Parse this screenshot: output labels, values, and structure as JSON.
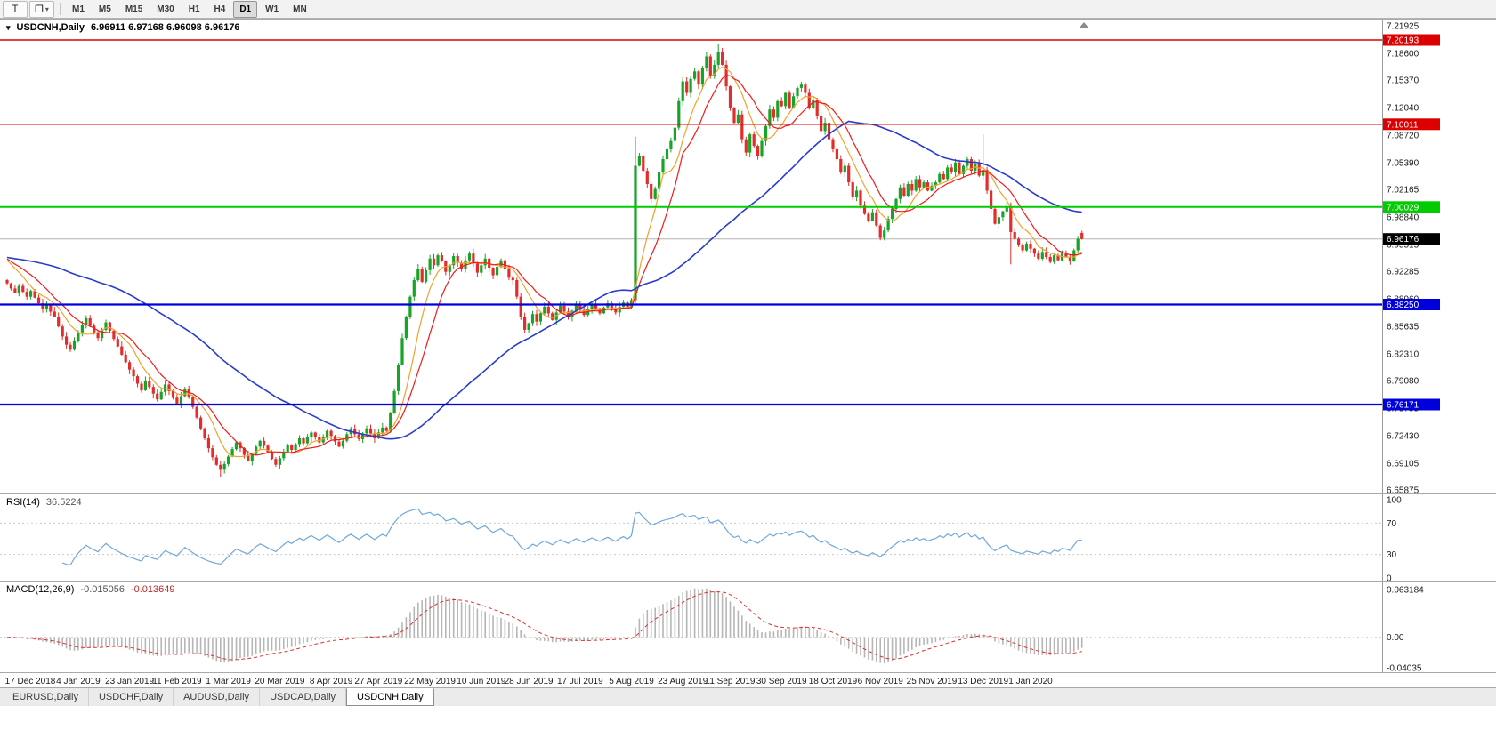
{
  "toolbar": {
    "tools": [
      {
        "name": "chart-template-button",
        "glyph": "T",
        "has_dropdown": false
      },
      {
        "name": "window-layout-button",
        "glyph": "❐",
        "has_dropdown": true
      }
    ],
    "timeframes": [
      "M1",
      "M5",
      "M15",
      "M30",
      "H1",
      "H4",
      "D1",
      "W1",
      "MN"
    ],
    "active_timeframe": "D1"
  },
  "chart": {
    "symbol_title": "USDCNH,Daily",
    "ohlc_text": "6.96911 6.97168 6.96098 6.96176",
    "scale": {
      "top": 7.2266,
      "bottom": 6.6544
    },
    "price_axis": [
      "7.21925",
      "7.18600",
      "7.15370",
      "7.12040",
      "7.08720",
      "7.05390",
      "7.02165",
      "6.98840",
      "6.95515",
      "6.92285",
      "6.88960",
      "6.85635",
      "6.82310",
      "6.79080",
      "6.75755",
      "6.72430",
      "6.69105",
      "6.65875"
    ],
    "hlines": [
      {
        "label": "7.20193",
        "price": 7.20193,
        "color": "#dd0000",
        "width": 1.4
      },
      {
        "label": "7.10011",
        "price": 7.10011,
        "color": "#dd0000",
        "width": 1.4
      },
      {
        "label": "7.00029",
        "price": 7.00029,
        "color": "#00cc00",
        "width": 2
      },
      {
        "label": "6.88250",
        "price": 6.8825,
        "color": "#0000dd",
        "width": 2.2
      },
      {
        "label": "6.76171",
        "price": 6.76171,
        "color": "#0000dd",
        "width": 2.2
      }
    ],
    "current_price": {
      "label": "6.96176",
      "value": 6.96176,
      "badge_bg": "#000000",
      "badge_fg": "#ffffff",
      "line_color": "#b4b4b4"
    },
    "candle_colors": {
      "bull": "#17a427",
      "bear": "#e32c2c"
    },
    "moving_averages": [
      {
        "period": 8,
        "color": "#efa32a",
        "width": 1.2
      },
      {
        "period": 13,
        "color": "#f01b1b",
        "width": 1.2
      },
      {
        "period": 55,
        "color": "#2b3cc8",
        "width": 1.6
      }
    ],
    "prehistory_price": 6.94,
    "candles": {
      "closes": [
        6.908,
        6.902,
        6.897,
        6.905,
        6.898,
        6.892,
        6.899,
        6.891,
        6.884,
        6.877,
        6.882,
        6.874,
        6.868,
        6.856,
        6.844,
        6.834,
        6.828,
        6.839,
        6.849,
        6.858,
        6.866,
        6.857,
        6.849,
        6.842,
        6.852,
        6.861,
        6.851,
        6.841,
        6.832,
        6.822,
        6.813,
        6.804,
        6.796,
        6.787,
        6.779,
        6.79,
        6.783,
        6.775,
        6.768,
        6.777,
        6.786,
        6.778,
        6.77,
        6.763,
        6.772,
        6.781,
        6.771,
        6.759,
        6.746,
        6.733,
        6.721,
        6.709,
        6.698,
        6.689,
        6.683,
        6.69,
        6.699,
        6.708,
        6.716,
        6.709,
        6.701,
        6.694,
        6.702,
        6.711,
        6.718,
        6.712,
        6.704,
        6.696,
        6.689,
        6.697,
        6.705,
        6.713,
        6.707,
        6.714,
        6.721,
        6.715,
        6.722,
        6.728,
        6.722,
        6.716,
        6.723,
        6.73,
        6.724,
        6.717,
        6.711,
        6.718,
        6.726,
        6.732,
        6.726,
        6.72,
        6.727,
        6.733,
        6.727,
        6.721,
        6.728,
        6.734,
        6.73,
        6.752,
        6.778,
        6.81,
        6.842,
        6.868,
        6.892,
        6.912,
        6.926,
        6.91,
        6.924,
        6.938,
        6.93,
        6.942,
        6.935,
        6.922,
        6.93,
        6.941,
        6.933,
        6.925,
        6.936,
        6.944,
        6.932,
        6.921,
        6.93,
        6.938,
        6.927,
        6.918,
        6.928,
        6.936,
        6.925,
        6.915,
        6.912,
        6.892,
        6.868,
        6.852,
        6.86,
        6.871,
        6.862,
        6.872,
        6.88,
        6.872,
        6.864,
        6.873,
        6.881,
        6.874,
        6.867,
        6.875,
        6.882,
        6.876,
        6.87,
        6.877,
        6.883,
        6.878,
        6.872,
        6.879,
        6.884,
        6.878,
        6.873,
        6.88,
        6.885,
        6.879,
        6.888,
        7.05,
        7.062,
        7.044,
        7.028,
        7.01,
        7.022,
        7.042,
        7.058,
        7.07,
        7.08,
        7.096,
        7.128,
        7.152,
        7.138,
        7.155,
        7.164,
        7.148,
        7.168,
        7.182,
        7.158,
        7.172,
        7.188,
        7.172,
        7.146,
        7.12,
        7.102,
        7.112,
        7.082,
        7.066,
        7.088,
        7.074,
        7.062,
        7.08,
        7.098,
        7.118,
        7.108,
        7.128,
        7.122,
        7.138,
        7.12,
        7.134,
        7.144,
        7.148,
        7.138,
        7.12,
        7.13,
        7.11,
        7.092,
        7.102,
        7.082,
        7.07,
        7.058,
        7.042,
        7.05,
        7.03,
        7.012,
        7.02,
        7.002,
        6.992,
        6.984,
        6.994,
        6.978,
        6.963,
        6.972,
        6.986,
        6.998,
        7.01,
        7.024,
        7.014,
        7.028,
        7.02,
        7.034,
        7.024,
        7.03,
        7.02,
        7.026,
        7.03,
        7.04,
        7.034,
        7.048,
        7.042,
        7.054,
        7.04,
        7.05,
        7.058,
        7.044,
        7.052,
        7.038,
        7.045,
        7.02,
        6.998,
        6.98,
        6.988,
        6.995,
        7.0,
        6.97,
        6.962,
        6.955,
        6.948,
        6.956,
        6.95,
        6.944,
        6.938,
        6.946,
        6.94,
        6.934,
        6.942,
        6.936,
        6.944,
        6.94,
        6.935,
        6.948,
        6.962,
        6.9618
      ],
      "overrides": {
        "0": {
          "o": 6.912
        },
        "54": {
          "l": 6.674
        },
        "159": {
          "o": 6.888,
          "h": 7.085,
          "l": 6.884
        },
        "180": {
          "h": 7.197
        },
        "247": {
          "h": 7.088
        },
        "254": {
          "l": 6.931
        },
        "272": {
          "o": 6.9691,
          "h": 6.9717,
          "l": 6.961
        }
      }
    },
    "date_axis": {
      "labels": [
        "17 Dec 2018",
        "4 Jan 2019",
        "23 Jan 2019",
        "11 Feb 2019",
        "1 Mar 2019",
        "20 Mar 2019",
        "8 Apr 2019",
        "27 Apr 2019",
        "22 May 2019",
        "10 Jun 2019",
        "28 Jun 2019",
        "17 Jul 2019",
        "5 Aug 2019",
        "23 Aug 2019",
        "11 Sep 2019",
        "30 Sep 2019",
        "18 Oct 2019",
        "6 Nov 2019",
        "25 Nov 2019",
        "13 Dec 2019",
        "1 Jan 2020"
      ],
      "bars": [
        5,
        18,
        31,
        43,
        56,
        69,
        82,
        94,
        107,
        120,
        132,
        145,
        158,
        171,
        183,
        196,
        209,
        221,
        234,
        247,
        259
      ]
    }
  },
  "rsi": {
    "name": "RSI(14)",
    "value": "36.5224",
    "period": 14,
    "line_color": "#6fa8dc",
    "axis_labels": [
      "100",
      "70",
      "30",
      "0"
    ],
    "level_lines": [
      70,
      30
    ]
  },
  "macd": {
    "name": "MACD(12,26,9)",
    "value_main": "-0.015056",
    "value_signal": "-0.013649",
    "fast": 12,
    "slow": 26,
    "signal": 9,
    "hist_color": "#b6b6b6",
    "signal_color": "#e03030",
    "axis_labels": [
      "0.063184",
      "0.00",
      "-0.04035"
    ]
  },
  "tabs": [
    "EURUSD,Daily",
    "USDCHF,Daily",
    "AUDUSD,Daily",
    "USDCAD,Daily",
    "USDCNH,Daily"
  ],
  "active_tab": "USDCNH,Daily"
}
